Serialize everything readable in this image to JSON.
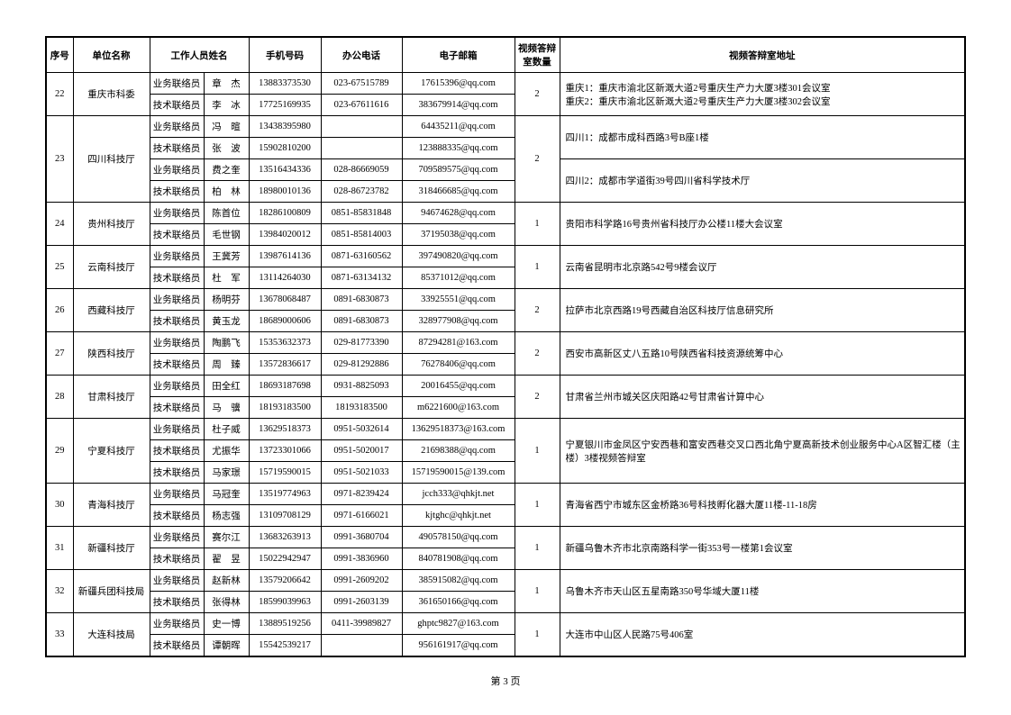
{
  "headers": {
    "seq": "序号",
    "unit": "单位名称",
    "staff": "工作人员姓名",
    "mobile": "手机号码",
    "office": "办公电话",
    "email": "电子邮箱",
    "room_count": "视频答辩室数量",
    "room_addr": "视频答辩室地址"
  },
  "footer": "第 3 页",
  "groups": [
    {
      "seq": "22",
      "unit": "重庆市科委",
      "count": "2",
      "addr": "重庆1：重庆市渝北区新溉大道2号重庆生产力大厦3楼301会议室\n重庆2：重庆市渝北区新溉大道2号重庆生产力大厦3楼302会议室",
      "addrRowspan": 2,
      "rows": [
        {
          "role": "业务联络员",
          "name": "章　杰",
          "mobile": "13883373530",
          "office": "023-67515789",
          "email": "17615396@qq.com"
        },
        {
          "role": "技术联络员",
          "name": "李　冰",
          "mobile": "17725169935",
          "office": "023-67611616",
          "email": "383679914@qq.com"
        }
      ]
    },
    {
      "seq": "23",
      "unit": "四川科技厅",
      "count": "2",
      "addrs": [
        {
          "text": "四川1：成都市成科西路3号B座1楼",
          "rowspan": 2
        },
        {
          "text": "四川2：成都市学道街39号四川省科学技术厅",
          "rowspan": 2
        }
      ],
      "rows": [
        {
          "role": "业务联络员",
          "name": "冯　暄",
          "mobile": "13438395980",
          "office": "",
          "email": "64435211@qq.com"
        },
        {
          "role": "技术联络员",
          "name": "张　波",
          "mobile": "15902810200",
          "office": "",
          "email": "123888335@qq.com"
        },
        {
          "role": "业务联络员",
          "name": "费之奎",
          "mobile": "13516434336",
          "office": "028-86669059",
          "email": "709589575@qq.com"
        },
        {
          "role": "技术联络员",
          "name": "柏　林",
          "mobile": "18980010136",
          "office": "028-86723782",
          "email": "318466685@qq.com"
        }
      ]
    },
    {
      "seq": "24",
      "unit": "贵州科技厅",
      "count": "1",
      "addr": "贵阳市科学路16号贵州省科技厅办公楼11楼大会议室",
      "addrRowspan": 2,
      "rows": [
        {
          "role": "业务联络员",
          "name": "陈首位",
          "mobile": "18286100809",
          "office": "0851-85831848",
          "email": "94674628@qq.com"
        },
        {
          "role": "技术联络员",
          "name": "毛世钢",
          "mobile": "13984020012",
          "office": "0851-85814003",
          "email": "37195038@qq.com"
        }
      ]
    },
    {
      "seq": "25",
      "unit": "云南科技厅",
      "count": "1",
      "addr": "云南省昆明市北京路542号9楼会议厅",
      "addrRowspan": 2,
      "rows": [
        {
          "role": "业务联络员",
          "name": "王冀芳",
          "mobile": "13987614136",
          "office": "0871-63160562",
          "email": "397490820@qq.com"
        },
        {
          "role": "技术联络员",
          "name": "杜　军",
          "mobile": "13114264030",
          "office": "0871-63134132",
          "email": "85371012@qq.com"
        }
      ]
    },
    {
      "seq": "26",
      "unit": "西藏科技厅",
      "count": "2",
      "addr": "拉萨市北京西路19号西藏自治区科技厅信息研究所",
      "addrRowspan": 2,
      "rows": [
        {
          "role": "业务联络员",
          "name": "杨明芬",
          "mobile": "13678068487",
          "office": "0891-6830873",
          "email": "33925551@qq.com"
        },
        {
          "role": "技术联络员",
          "name": "黄玉龙",
          "mobile": "18689000606",
          "office": "0891-6830873",
          "email": "328977908@qq.com"
        }
      ]
    },
    {
      "seq": "27",
      "unit": "陕西科技厅",
      "count": "2",
      "addr": "西安市高新区丈八五路10号陕西省科技资源统筹中心",
      "addrRowspan": 2,
      "rows": [
        {
          "role": "业务联络员",
          "name": "陶鹏飞",
          "mobile": "15353632373",
          "office": "029-81773390",
          "email": "87294281@163.com"
        },
        {
          "role": "技术联络员",
          "name": "周　臻",
          "mobile": "13572836617",
          "office": "029-81292886",
          "email": "76278406@qq.com"
        }
      ]
    },
    {
      "seq": "28",
      "unit": "甘肃科技厅",
      "count": "2",
      "addr": "甘肃省兰州市城关区庆阳路42号甘肃省计算中心",
      "addrRowspan": 2,
      "rows": [
        {
          "role": "业务联络员",
          "name": "田全红",
          "mobile": "18693187698",
          "office": "0931-8825093",
          "email": "20016455@qq.com"
        },
        {
          "role": "技术联络员",
          "name": "马　骥",
          "mobile": "18193183500",
          "office": "18193183500",
          "email": "m6221600@163.com"
        }
      ]
    },
    {
      "seq": "29",
      "unit": "宁夏科技厅",
      "count": "1",
      "addr": "宁夏银川市金凤区宁安西巷和富安西巷交叉口西北角宁夏高新技术创业服务中心A区智汇楼（主楼）3楼视频答辩室",
      "addrRowspan": 3,
      "rows": [
        {
          "role": "业务联络员",
          "name": "杜子威",
          "mobile": "13629518373",
          "office": "0951-5032614",
          "email": "13629518373@163.com"
        },
        {
          "role": "技术联络员",
          "name": "尤振华",
          "mobile": "13723301066",
          "office": "0951-5020017",
          "email": "21698388@qq.com"
        },
        {
          "role": "技术联络员",
          "name": "马家璟",
          "mobile": "15719590015",
          "office": "0951-5021033",
          "email": "15719590015@139.com"
        }
      ]
    },
    {
      "seq": "30",
      "unit": "青海科技厅",
      "count": "1",
      "addr": "青海省西宁市城东区金桥路36号科技孵化器大厦11楼-11-18房",
      "addrRowspan": 2,
      "rows": [
        {
          "role": "业务联络员",
          "name": "马冠奎",
          "mobile": "13519774963",
          "office": "0971-8239424",
          "email": "jcch333@qhkjt.net"
        },
        {
          "role": "技术联络员",
          "name": "杨志强",
          "mobile": "13109708129",
          "office": "0971-6166021",
          "email": "kjtghc@qhkjt.net"
        }
      ]
    },
    {
      "seq": "31",
      "unit": "新疆科技厅",
      "count": "1",
      "addr": "新疆乌鲁木齐市北京南路科学一街353号一楼第1会议室",
      "addrRowspan": 2,
      "rows": [
        {
          "role": "业务联络员",
          "name": "赛尔江",
          "mobile": "13683263913",
          "office": "0991-3680704",
          "email": "490578150@qq.com"
        },
        {
          "role": "技术联络员",
          "name": "翟　昱",
          "mobile": "15022942947",
          "office": "0991-3836960",
          "email": "840781908@qq.com"
        }
      ]
    },
    {
      "seq": "32",
      "unit": "新疆兵团科技局",
      "count": "1",
      "addr": "乌鲁木齐市天山区五星南路350号华域大厦11楼",
      "addrRowspan": 2,
      "rows": [
        {
          "role": "业务联络员",
          "name": "赵新林",
          "mobile": "13579206642",
          "office": "0991-2609202",
          "email": "385915082@qq.com"
        },
        {
          "role": "技术联络员",
          "name": "张得林",
          "mobile": "18599039963",
          "office": "0991-2603139",
          "email": "361650166@qq.com"
        }
      ]
    },
    {
      "seq": "33",
      "unit": "大连科技局",
      "count": "1",
      "addr": "大连市中山区人民路75号406室",
      "addrRowspan": 2,
      "rows": [
        {
          "role": "业务联络员",
          "name": "史一博",
          "mobile": "13889519256",
          "office": "0411-39989827",
          "email": "ghptc9827@163.com"
        },
        {
          "role": "技术联络员",
          "name": "谭朝晖",
          "mobile": "15542539217",
          "office": "",
          "email": "956161917@qq.com"
        }
      ]
    }
  ]
}
